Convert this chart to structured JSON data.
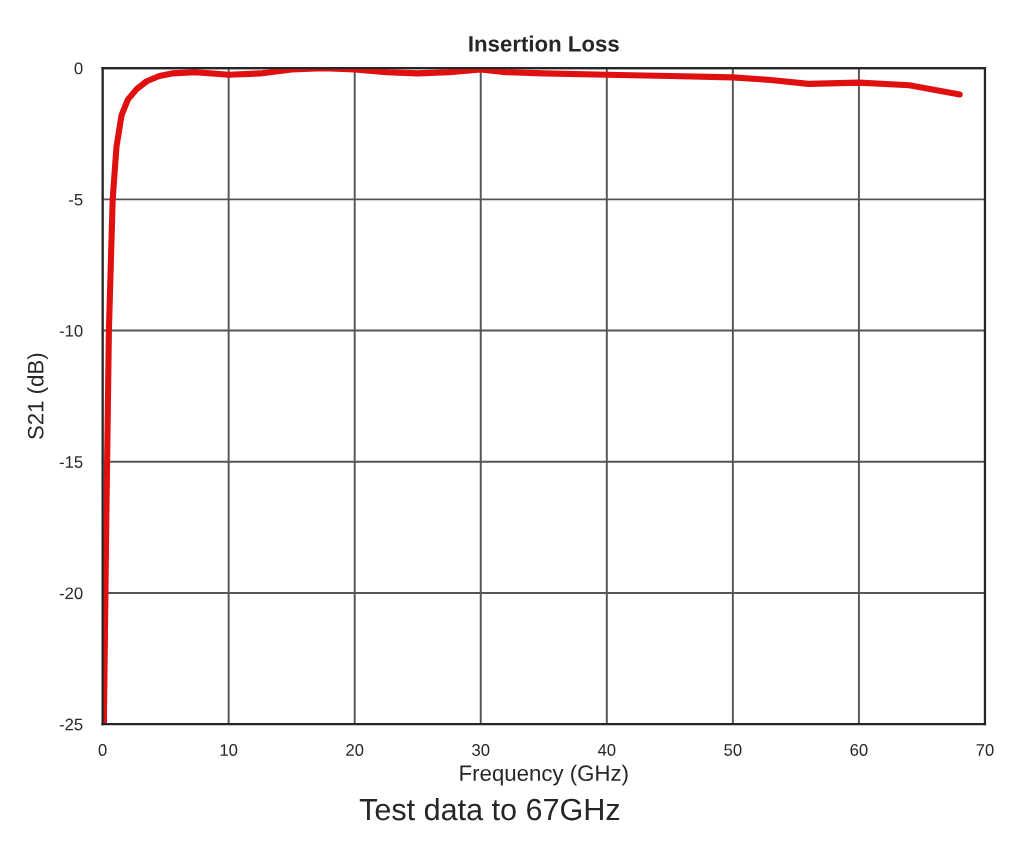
{
  "chart_data": {
    "type": "line",
    "title": "Insertion Loss",
    "xlabel": "Frequency (GHz)",
    "ylabel": "S21 (dB)",
    "annotations": [
      "Test data to 67GHz"
    ],
    "series": [
      {
        "color": "#e01010",
        "x": [
          0.1,
          0.3,
          0.5,
          0.8,
          1.1,
          1.5,
          2.0,
          2.7,
          3.5,
          4.5,
          5.5,
          7.3,
          10,
          12.5,
          15,
          17.5,
          20,
          22.5,
          25,
          27.5,
          30,
          32,
          35,
          40,
          45,
          50,
          53,
          56,
          60,
          64,
          68
        ],
        "values": [
          -25,
          -17,
          -10,
          -5,
          -3,
          -1.8,
          -1.2,
          -0.8,
          -0.5,
          -0.3,
          -0.2,
          -0.15,
          -0.25,
          -0.2,
          -0.05,
          0,
          -0.05,
          -0.15,
          -0.2,
          -0.15,
          -0.05,
          -0.15,
          -0.2,
          -0.25,
          -0.3,
          -0.35,
          -0.45,
          -0.6,
          -0.55,
          -0.65,
          -1.0
        ]
      }
    ],
    "xlim": [
      0,
      70
    ],
    "xticks": [
      0,
      10,
      20,
      30,
      40,
      50,
      60,
      70
    ],
    "ylim": [
      -25,
      0
    ],
    "yticks": [
      -25,
      -20,
      -15,
      -10,
      -5,
      0
    ],
    "grid": true,
    "line_style": "solid",
    "marker": "none"
  }
}
